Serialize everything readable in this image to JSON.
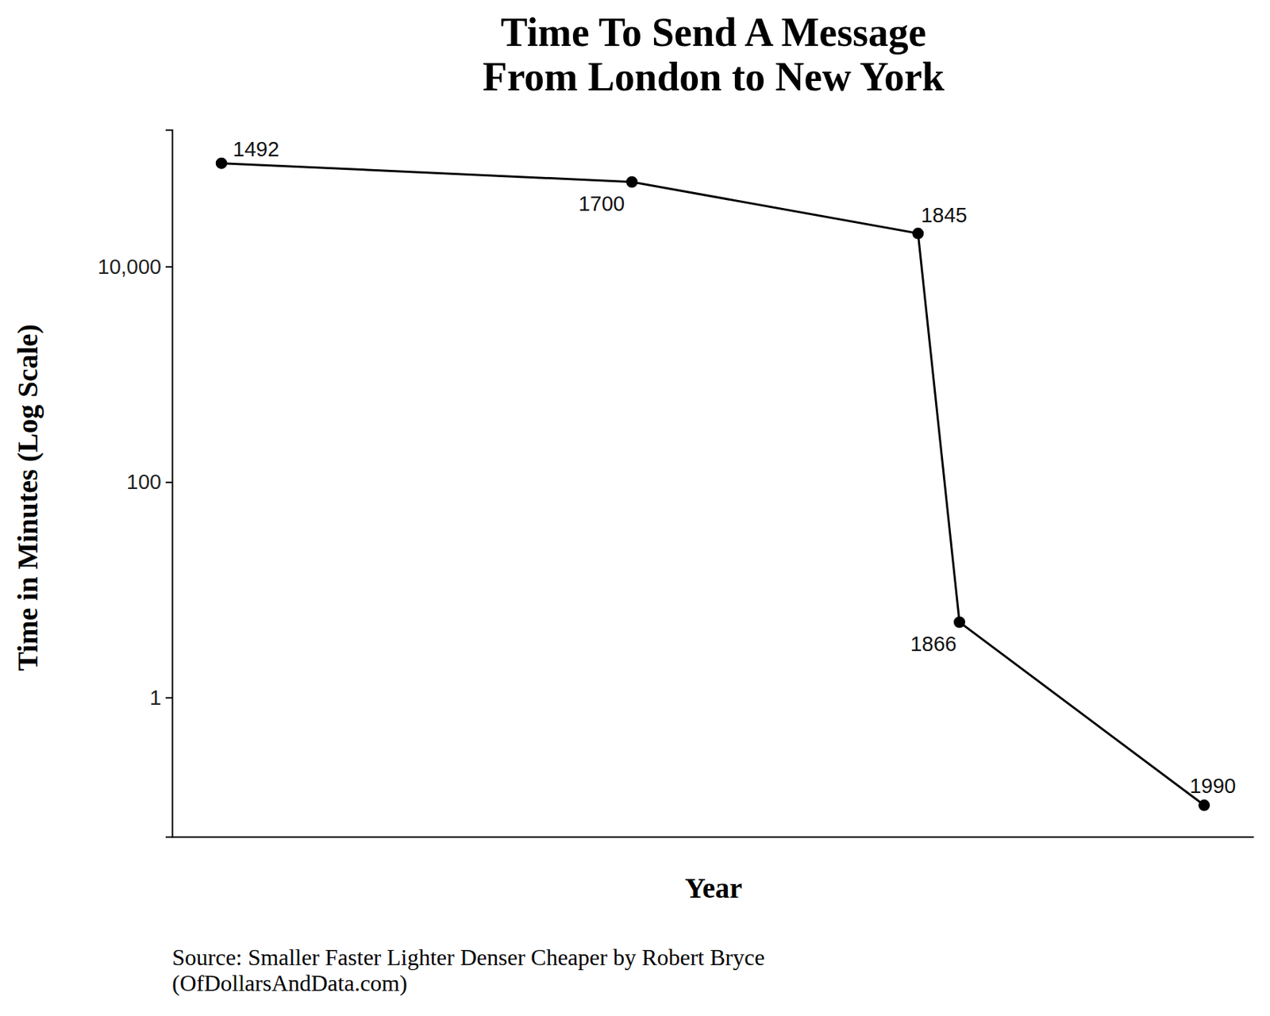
{
  "chart_data": {
    "type": "line",
    "title": [
      "Time To Send A Message",
      "From London to New York"
    ],
    "x_label": "Year",
    "y_label": "Time in Minutes (Log Scale)",
    "caption": [
      "Source: Smaller Faster Lighter Denser Cheaper by Robert Bryce",
      "(OfDollarsAndData.com)"
    ],
    "x": [
      1492,
      1700,
      1845,
      1866,
      1990
    ],
    "values": [
      91000,
      61000,
      20300,
      5,
      0.1
    ],
    "color": "#000000",
    "marker": "circle",
    "line_style": "solid",
    "log": "y",
    "xlim": [
      1467,
      2015
    ],
    "ylim": [
      0.051,
      186000
    ],
    "yticks": [
      1,
      100,
      {
        "value": 10000,
        "label": "10,000"
      }
    ],
    "tick_labels": "y",
    "data_labels": true,
    "grid": false
  }
}
